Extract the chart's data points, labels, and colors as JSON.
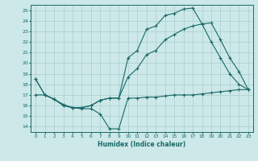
{
  "bg_color": "#cce8e8",
  "grid_color": "#aacece",
  "line_color": "#1a6868",
  "xlabel": "Humidex (Indice chaleur)",
  "xlim": [
    -0.5,
    23.5
  ],
  "ylim": [
    13.5,
    25.5
  ],
  "yticks": [
    14,
    15,
    16,
    17,
    18,
    19,
    20,
    21,
    22,
    23,
    24,
    25
  ],
  "xticks": [
    0,
    1,
    2,
    3,
    4,
    5,
    6,
    7,
    8,
    9,
    10,
    11,
    12,
    13,
    14,
    15,
    16,
    17,
    18,
    19,
    20,
    21,
    22,
    23
  ],
  "curve1_x": [
    0,
    1,
    2,
    3,
    4,
    5,
    6,
    7,
    8,
    9,
    10,
    11,
    12,
    13,
    14,
    15,
    16,
    17,
    18,
    19,
    20,
    21,
    22,
    23
  ],
  "curve1_y": [
    18.5,
    17.0,
    16.6,
    16.0,
    15.8,
    15.8,
    16.0,
    16.5,
    16.7,
    16.7,
    20.5,
    21.2,
    23.2,
    23.5,
    24.5,
    24.7,
    25.1,
    25.2,
    23.7,
    23.8,
    22.2,
    20.5,
    19.2,
    17.5
  ],
  "curve2_x": [
    0,
    1,
    2,
    3,
    4,
    5,
    6,
    7,
    8,
    9,
    10,
    11,
    12,
    13,
    14,
    15,
    16,
    17,
    18,
    19,
    20,
    21,
    22,
    23
  ],
  "curve2_y": [
    18.5,
    17.0,
    16.6,
    16.0,
    15.8,
    15.8,
    16.0,
    16.5,
    16.7,
    16.7,
    18.7,
    19.5,
    20.8,
    21.2,
    22.2,
    22.7,
    23.2,
    23.5,
    23.7,
    22.0,
    20.5,
    19.0,
    18.0,
    17.5
  ],
  "curve3_x": [
    0,
    1,
    2,
    3,
    4,
    5,
    6,
    7,
    8,
    9,
    10,
    11,
    12,
    13,
    14,
    15,
    16,
    17,
    18,
    19,
    20,
    21,
    22,
    23
  ],
  "curve3_y": [
    17.0,
    17.0,
    16.6,
    16.1,
    15.8,
    15.7,
    15.7,
    15.2,
    13.8,
    13.8,
    16.7,
    16.7,
    16.8,
    16.8,
    16.9,
    17.0,
    17.0,
    17.0,
    17.1,
    17.2,
    17.3,
    17.4,
    17.5,
    17.5
  ]
}
